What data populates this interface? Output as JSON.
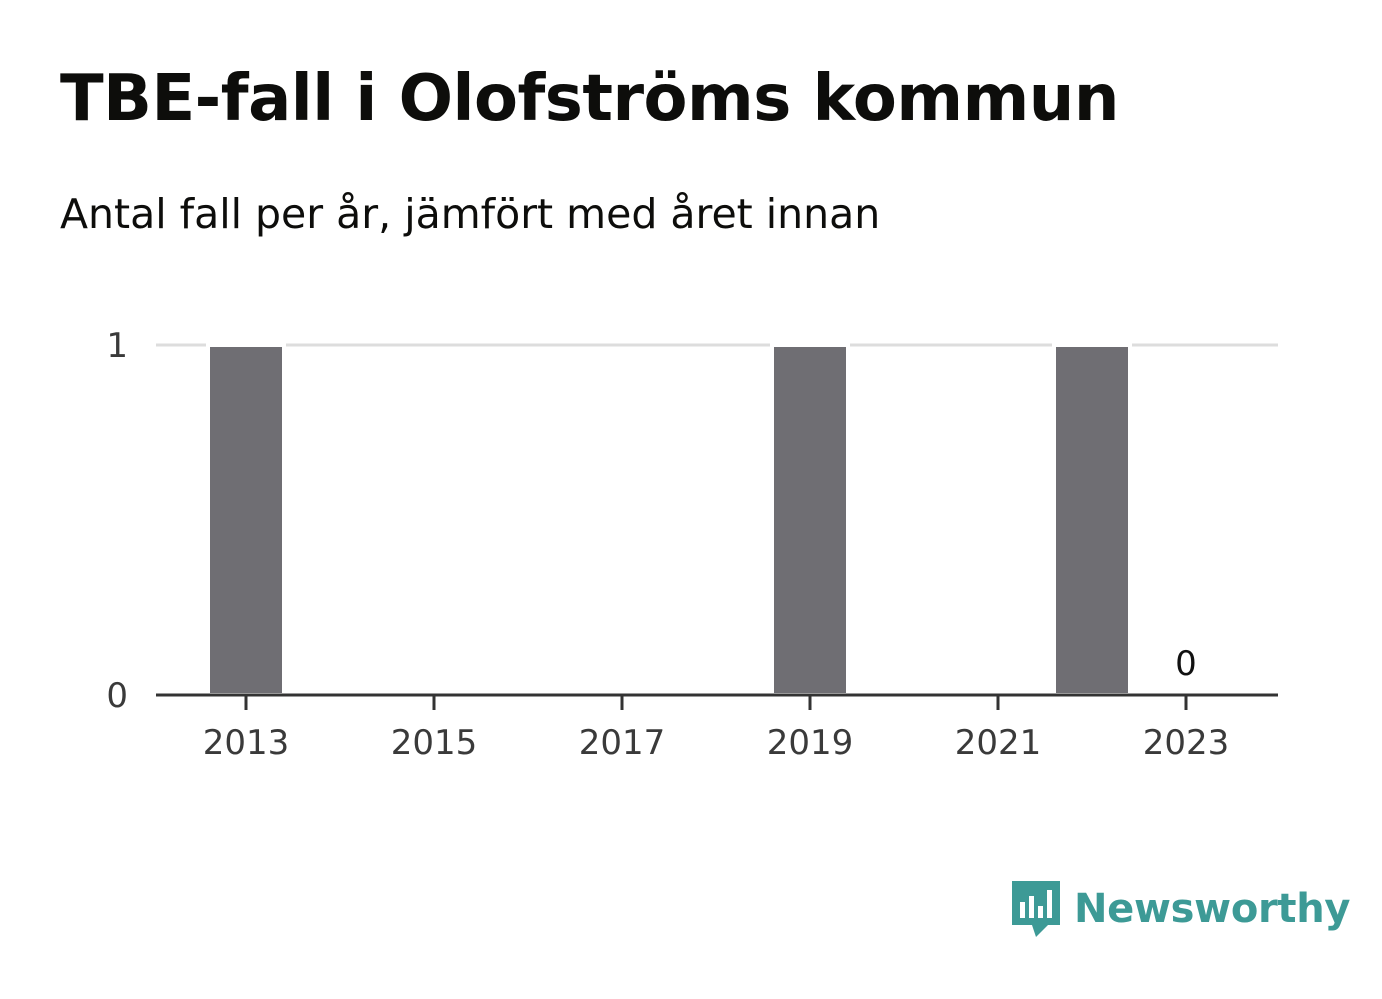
{
  "title": "TBE-fall i Olofströms kommun",
  "subtitle": "Antal fall per år, jämfört med året innan",
  "brand": {
    "name": "Newsworthy",
    "logo_icon": "bar-chart-speech-bubble-icon",
    "color": "#3d9a96"
  },
  "colors": {
    "bar": "#6f6e73",
    "grid": "#dddddd",
    "axis": "#333333"
  },
  "chart_data": {
    "type": "bar",
    "title": "TBE-fall i Olofströms kommun",
    "subtitle": "Antal fall per år, jämfört med året innan",
    "xlabel": "",
    "ylabel": "",
    "categories": [
      "2013",
      "2014",
      "2015",
      "2016",
      "2017",
      "2018",
      "2019",
      "2020",
      "2021",
      "2022",
      "2023"
    ],
    "values": [
      1,
      0,
      0,
      0,
      0,
      0,
      1,
      0,
      0,
      1,
      0
    ],
    "x_tick_labels": [
      "2013",
      "2015",
      "2017",
      "2019",
      "2021",
      "2023"
    ],
    "y_ticks": [
      0,
      1
    ],
    "ylim": [
      0,
      1
    ],
    "grid": true,
    "data_labels": [
      {
        "category": "2023",
        "text": "0"
      }
    ]
  }
}
